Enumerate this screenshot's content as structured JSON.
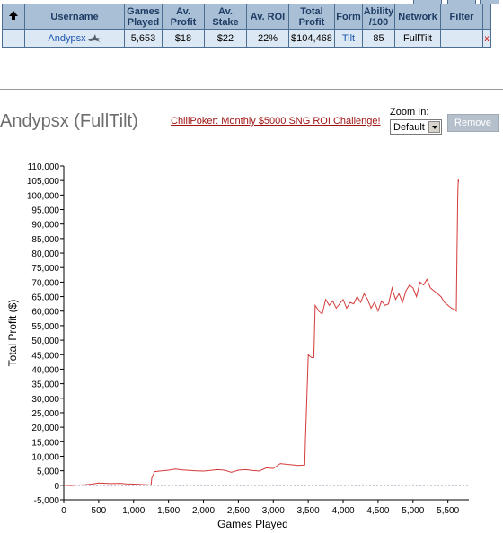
{
  "table": {
    "headers": {
      "username": "Username",
      "games_played": [
        "Games",
        "Played"
      ],
      "av_profit": [
        "Av.",
        "Profit"
      ],
      "av_stake": [
        "Av.",
        "Stake"
      ],
      "av_roi": "Av. ROI",
      "total_profit": [
        "Total",
        "Profit"
      ],
      "form": "Form",
      "ability": [
        "Ability",
        "/100"
      ],
      "network": "Network",
      "filter": "Filter"
    },
    "row": {
      "username": "Andypsx",
      "games_played": "5,653",
      "av_profit": "$18",
      "av_stake": "$22",
      "av_roi": "22%",
      "total_profit": "$104,468",
      "form": "Tilt",
      "ability": "85",
      "network": "FullTilt",
      "filter": "",
      "close": "x"
    }
  },
  "player_title": "Andypsx (FullTilt)",
  "promo_link": "ChiliPoker: Monthly $5000 SNG ROI Challenge!",
  "zoom": {
    "label": "Zoom In:",
    "selected": "Default"
  },
  "remove_button": "Remove",
  "colors": {
    "header_bg": "#a8bfd6",
    "row_bg": "#dce8f3",
    "line": "#d43a3a",
    "link": "#1a55b0"
  },
  "icons": {
    "sort": "up-arrow-icon",
    "avatar": "shark-icon",
    "close": "close-icon",
    "dropdown": "chevron-down-icon"
  },
  "chart_data": {
    "type": "line",
    "xlabel": "Games Played",
    "ylabel": "Total Profit ($)",
    "xlim": [
      0,
      5800
    ],
    "ylim": [
      -5000,
      110000
    ],
    "xticks": [
      0,
      500,
      1000,
      1500,
      2000,
      2500,
      3000,
      3500,
      4000,
      4500,
      5000,
      5500
    ],
    "xtick_labels": [
      "0",
      "500",
      "1,000",
      "1,500",
      "2,000",
      "2,500",
      "3,000",
      "3,500",
      "4,000",
      "4,500",
      "5,000",
      "5,500"
    ],
    "yticks": [
      -5000,
      0,
      5000,
      10000,
      15000,
      20000,
      25000,
      30000,
      35000,
      40000,
      45000,
      50000,
      55000,
      60000,
      65000,
      70000,
      75000,
      80000,
      85000,
      90000,
      95000,
      100000,
      105000,
      110000
    ],
    "ytick_labels": [
      "-5,000",
      "0",
      "5,000",
      "10,000",
      "15,000",
      "20,000",
      "25,000",
      "30,000",
      "35,000",
      "40,000",
      "45,000",
      "50,000",
      "55,000",
      "60,000",
      "65,000",
      "70,000",
      "75,000",
      "80,000",
      "85,000",
      "90,000",
      "95,000",
      "100,000",
      "105,000",
      "110,000"
    ],
    "zero_line": true,
    "grid": false,
    "series": [
      {
        "x": [
          0,
          100,
          200,
          300,
          400,
          500,
          600,
          700,
          800,
          900,
          1000,
          1100,
          1200,
          1250,
          1260,
          1300,
          1400,
          1500,
          1600,
          1700,
          1800,
          1900,
          2000,
          2100,
          2200,
          2300,
          2400,
          2500,
          2600,
          2700,
          2800,
          2900,
          3000,
          3100,
          3200,
          3300,
          3350,
          3400,
          3450,
          3460,
          3480,
          3500,
          3520,
          3550,
          3580,
          3600,
          3650,
          3700,
          3750,
          3800,
          3850,
          3900,
          3950,
          4000,
          4050,
          4100,
          4150,
          4200,
          4250,
          4300,
          4350,
          4400,
          4450,
          4500,
          4550,
          4600,
          4650,
          4700,
          4750,
          4800,
          4850,
          4900,
          4950,
          5000,
          5050,
          5100,
          5150,
          5200,
          5250,
          5300,
          5350,
          5400,
          5450,
          5500,
          5550,
          5600,
          5620,
          5630,
          5640,
          5645,
          5650,
          5653
        ],
        "y": [
          0,
          -100,
          100,
          200,
          400,
          800,
          700,
          600,
          700,
          500,
          400,
          300,
          200,
          100,
          2500,
          4700,
          5000,
          5200,
          5600,
          5300,
          5100,
          5000,
          4900,
          5100,
          5400,
          5200,
          4500,
          5200,
          5400,
          5100,
          4900,
          6000,
          5800,
          7500,
          7200,
          7000,
          6800,
          6900,
          7000,
          15000,
          30000,
          45000,
          44500,
          44000,
          44000,
          62000,
          60000,
          59000,
          64000,
          62000,
          63500,
          61000,
          62500,
          64000,
          61000,
          63000,
          62500,
          65000,
          63000,
          66000,
          64000,
          61000,
          63000,
          60000,
          63500,
          62000,
          62500,
          68000,
          64000,
          66000,
          63000,
          67000,
          69000,
          68000,
          65000,
          70000,
          69000,
          71000,
          68000,
          67000,
          66000,
          65000,
          63000,
          62000,
          61000,
          60500,
          60000,
          80000,
          99000,
          103000,
          105500,
          104468
        ]
      }
    ]
  }
}
